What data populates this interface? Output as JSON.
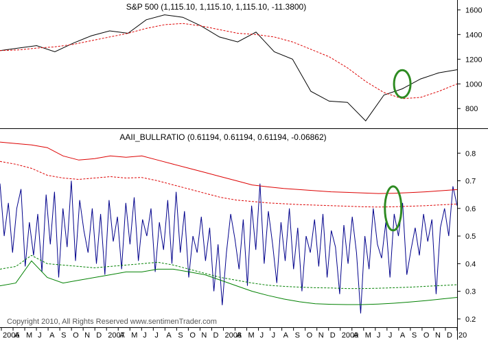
{
  "colors": {
    "background": "#ffffff",
    "price_line": "#000000",
    "price_ma": "#dd0000",
    "ratio_line": "#00008b",
    "upper_band": "#dd0000",
    "lower_band": "#008000",
    "highlight_circle": "#2e8b22",
    "frame": "#000000",
    "copyright": "#555555"
  },
  "copyright": "Copyright 2010, All Rights Reserved  www.sentimenTrader.com",
  "chart_data": [
    {
      "type": "line",
      "title": "S&P 500 (1,115.10, 1,115.10, 1,115.10, -11.3800)",
      "ylim": [
        640,
        1680
      ],
      "yticks": [
        800,
        1000,
        1200,
        1400,
        1600
      ],
      "y_axis_side": "right",
      "grid": false,
      "x": [
        "2006-01",
        "2006-03",
        "2006-05",
        "2006-07",
        "2006-09",
        "2006-11",
        "2007-01",
        "2007-03",
        "2007-05",
        "2007-07",
        "2007-09",
        "2007-11",
        "2008-01",
        "2008-03",
        "2008-05",
        "2008-07",
        "2008-09",
        "2008-10",
        "2008-11",
        "2009-01",
        "2009-03",
        "2009-05",
        "2009-07",
        "2009-09",
        "2009-11",
        "2010-01"
      ],
      "series": [
        {
          "values": [
            1270,
            1290,
            1310,
            1260,
            1330,
            1390,
            1430,
            1410,
            1520,
            1560,
            1540,
            1470,
            1380,
            1340,
            1420,
            1260,
            1200,
            940,
            860,
            850,
            700,
            910,
            960,
            1040,
            1090,
            1115
          ],
          "style": "solid"
        },
        {
          "values": [
            1270,
            1275,
            1290,
            1300,
            1320,
            1350,
            1380,
            1410,
            1450,
            1480,
            1490,
            1470,
            1440,
            1410,
            1400,
            1380,
            1340,
            1280,
            1220,
            1130,
            1020,
            930,
            880,
            890,
            940,
            1000
          ],
          "style": "dashed"
        }
      ],
      "annotations": [
        {
          "shape": "ellipse",
          "x": "2009-07",
          "y": 1000
        }
      ]
    },
    {
      "type": "line",
      "title": "AAII_BULLRATIO (0.61194, 0.61194, 0.61194, -0.06862)",
      "ylim": [
        0.17,
        0.89
      ],
      "yticks": [
        0.2,
        0.3,
        0.4,
        0.5,
        0.6,
        0.7,
        0.8
      ],
      "y_axis_side": "right",
      "grid": false,
      "xtick_labels": [
        "2006",
        "A",
        "M",
        "J",
        "A",
        "S",
        "O",
        "N",
        "D",
        "2007",
        "A",
        "M",
        "J",
        "J",
        "A",
        "S",
        "O",
        "N",
        "D",
        "2008",
        "A",
        "M",
        "J",
        "J",
        "A",
        "S",
        "O",
        "N",
        "D",
        "2009",
        "A",
        "M",
        "J",
        "J",
        "A",
        "S",
        "O",
        "N",
        "D",
        "20"
      ],
      "series": [
        {
          "values": [
            0.69,
            0.5,
            0.62,
            0.44,
            0.6,
            0.67,
            0.39,
            0.55,
            0.43,
            0.58,
            0.37,
            0.65,
            0.47,
            0.66,
            0.35,
            0.6,
            0.46,
            0.7,
            0.41,
            0.63,
            0.52,
            0.44,
            0.6,
            0.4,
            0.58,
            0.36,
            0.63,
            0.48,
            0.57,
            0.38,
            0.62,
            0.47,
            0.64,
            0.41,
            0.56,
            0.5,
            0.6,
            0.37,
            0.55,
            0.45,
            0.63,
            0.4,
            0.66,
            0.44,
            0.59,
            0.35,
            0.5,
            0.44,
            0.57,
            0.41,
            0.53,
            0.3,
            0.47,
            0.25,
            0.44,
            0.58,
            0.49,
            0.38,
            0.56,
            0.32,
            0.61,
            0.45,
            0.69,
            0.4,
            0.59,
            0.47,
            0.33,
            0.55,
            0.41,
            0.6,
            0.38,
            0.53,
            0.3,
            0.5,
            0.44,
            0.56,
            0.39,
            0.58,
            0.35,
            0.52,
            0.46,
            0.29,
            0.54,
            0.4,
            0.57,
            0.44,
            0.22,
            0.5,
            0.38,
            0.6,
            0.47,
            0.42,
            0.55,
            0.35,
            0.58,
            0.5,
            0.62,
            0.36,
            0.45,
            0.53,
            0.43,
            0.58,
            0.48,
            0.56,
            0.29,
            0.53,
            0.6,
            0.5,
            0.68,
            0.61
          ],
          "style": "solid"
        },
        {
          "values": [
            0.84,
            0.835,
            0.83,
            0.82,
            0.79,
            0.775,
            0.78,
            0.79,
            0.785,
            0.79,
            0.775,
            0.76,
            0.745,
            0.73,
            0.715,
            0.7,
            0.685,
            0.678,
            0.672,
            0.668,
            0.664,
            0.66,
            0.658,
            0.656,
            0.654,
            0.655,
            0.657,
            0.66,
            0.664,
            0.668
          ],
          "style": "solid"
        },
        {
          "values": [
            0.77,
            0.76,
            0.745,
            0.72,
            0.71,
            0.705,
            0.71,
            0.715,
            0.71,
            0.712,
            0.7,
            0.685,
            0.67,
            0.655,
            0.64,
            0.63,
            0.625,
            0.62,
            0.617,
            0.614,
            0.612,
            0.61,
            0.608,
            0.606,
            0.605,
            0.606,
            0.608,
            0.61,
            0.613,
            0.616
          ],
          "style": "dashed"
        },
        {
          "values": [
            0.38,
            0.39,
            0.43,
            0.4,
            0.395,
            0.39,
            0.385,
            0.39,
            0.395,
            0.4,
            0.405,
            0.395,
            0.38,
            0.365,
            0.35,
            0.34,
            0.33,
            0.322,
            0.318,
            0.315,
            0.313,
            0.312,
            0.31,
            0.31,
            0.311,
            0.313,
            0.315,
            0.318,
            0.321,
            0.324
          ],
          "style": "dashed"
        },
        {
          "values": [
            0.32,
            0.33,
            0.41,
            0.35,
            0.33,
            0.34,
            0.35,
            0.36,
            0.37,
            0.37,
            0.38,
            0.38,
            0.37,
            0.36,
            0.34,
            0.32,
            0.3,
            0.285,
            0.272,
            0.262,
            0.255,
            0.253,
            0.252,
            0.252,
            0.254,
            0.257,
            0.261,
            0.266,
            0.272,
            0.278
          ],
          "style": "solid"
        }
      ],
      "annotations": [
        {
          "shape": "ellipse",
          "x": "2009-07",
          "y": 0.6
        }
      ]
    }
  ]
}
